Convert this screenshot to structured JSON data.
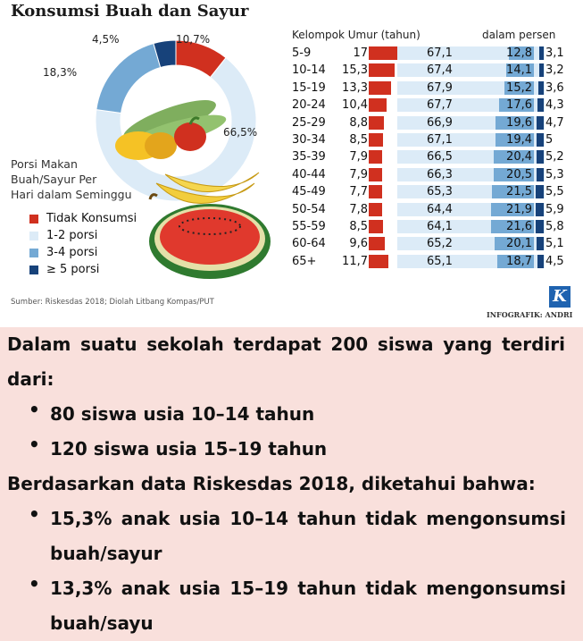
{
  "title": "Konsumsi Buah dan Sayur",
  "pie": {
    "slices": [
      {
        "label": "10,7%",
        "value": 10.7,
        "color": "#d0301f"
      },
      {
        "label": "66,5%",
        "value": 66.5,
        "color": "#dcebf7"
      },
      {
        "label": "18,3%",
        "value": 18.3,
        "color": "#74a9d4"
      },
      {
        "label": "4,5%",
        "value": 4.5,
        "color": "#17427a"
      }
    ]
  },
  "portion_title": [
    "Porsi Makan",
    "Buah/Sayur Per",
    "Hari dalam Seminggu"
  ],
  "legend": [
    {
      "label": "Tidak Konsumsi",
      "color": "#d0301f"
    },
    {
      "label": "1-2 porsi",
      "color": "#dcebf7"
    },
    {
      "label": "3-4 porsi",
      "color": "#74a9d4"
    },
    {
      "label": "≥ 5 porsi",
      "color": "#17427a"
    }
  ],
  "table_header": {
    "age_group": "Kelompok Umur (tahun)",
    "unit": "dalam persen"
  },
  "chart_data": {
    "type": "bar",
    "categories": [
      "5-9",
      "10-14",
      "15-19",
      "20-24",
      "25-29",
      "30-34",
      "35-39",
      "40-44",
      "45-49",
      "50-54",
      "55-59",
      "60-64",
      "65+"
    ],
    "series": [
      {
        "name": "Tidak Konsumsi",
        "values": [
          17,
          15.3,
          13.3,
          10.4,
          8.8,
          8.5,
          7.9,
          7.9,
          7.7,
          7.8,
          8.5,
          9.6,
          11.7
        ],
        "labels": [
          "17",
          "15,3",
          "13,3",
          "10,4",
          "8,8",
          "8,5",
          "7,9",
          "7,9",
          "7,7",
          "7,8",
          "8,5",
          "9,6",
          "11,7"
        ]
      },
      {
        "name": "1-2 porsi",
        "values": [
          67.1,
          67.4,
          67.9,
          67.7,
          66.9,
          67.1,
          66.5,
          66.3,
          65.3,
          64.4,
          64.1,
          65.2,
          65.1
        ],
        "labels": [
          "67,1",
          "67,4",
          "67,9",
          "67,7",
          "66,9",
          "67,1",
          "66,5",
          "66,3",
          "65,3",
          "64,4",
          "64,1",
          "65,2",
          "65,1"
        ]
      },
      {
        "name": "3-4 porsi",
        "values": [
          12.8,
          14.1,
          15.2,
          17.6,
          19.6,
          19.4,
          20.4,
          20.5,
          21.5,
          21.9,
          21.6,
          20.1,
          18.7
        ],
        "labels": [
          "12,8",
          "14,1",
          "15,2",
          "17,6",
          "19,6",
          "19,4",
          "20,4",
          "20,5",
          "21,5",
          "21,9",
          "21,6",
          "20,1",
          "18,7"
        ]
      },
      {
        "name": "≥ 5 porsi",
        "values": [
          3.1,
          3.2,
          3.6,
          4.3,
          4.7,
          5,
          5.2,
          5.3,
          5.5,
          5.9,
          5.8,
          5.1,
          4.5
        ],
        "labels": [
          "3,1",
          "3,2",
          "3,6",
          "4,3",
          "4,7",
          "5",
          "5,2",
          "5,3",
          "5,5",
          "5,9",
          "5,8",
          "5,1",
          "4,5"
        ]
      }
    ]
  },
  "source": "Sumber: Riskesdas 2018; Diolah Litbang Kompas/PUT",
  "credit": "INFOGRAFIK: ANDRI",
  "badge": "K",
  "text": {
    "p1_line1": "Dalam suatu sekolah terdapat 200 siswa yang terdiri",
    "p1_line2": "dari:",
    "bullet1": "80 siswa usia 10–14 tahun",
    "bullet2": "120 siswa usia 15–19 tahun",
    "p2": "Berdasarkan data Riskesdas 2018, diketahui bahwa:",
    "bullet3_line1": "15,3% anak usia 10–14 tahun tidak mengonsumsi",
    "bullet3_line2": "buah/sayur",
    "bullet4_line1": "13,3% anak usia 15–19 tahun tidak mengonsumsi",
    "bullet4_line2": "buah/sayu"
  }
}
